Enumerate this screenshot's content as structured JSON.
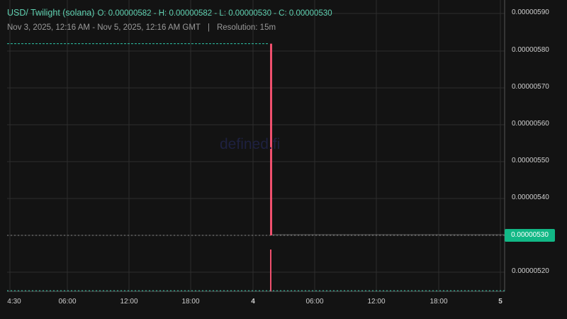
{
  "header": {
    "pair": "USD/ Twilight (solana)",
    "ohlc": "O: 0.00000582 - H: 0.00000582 - L: 0.00000530 - C: 0.00000530",
    "range": "Nov 3, 2025, 12:16 AM - Nov 5, 2025, 12:16 AM GMT",
    "separator": "|",
    "resolution": "Resolution: 15m"
  },
  "watermark": "defined.fi",
  "y_axis": {
    "labels": [
      "0.00000590",
      "0.00000580",
      "0.00000570",
      "0.00000560",
      "0.00000550",
      "0.00000540",
      "0.00000530",
      "0.00000520"
    ],
    "last_price": "0.00000530"
  },
  "x_axis": {
    "labels": [
      {
        "t": "4:30",
        "bold": false
      },
      {
        "t": "06:00",
        "bold": false
      },
      {
        "t": "12:00",
        "bold": false
      },
      {
        "t": "18:00",
        "bold": false
      },
      {
        "t": "4",
        "bold": true
      },
      {
        "t": "06:00",
        "bold": false
      },
      {
        "t": "12:00",
        "bold": false
      },
      {
        "t": "18:00",
        "bold": false
      },
      {
        "t": "5",
        "bold": true
      }
    ]
  },
  "candle": {
    "open": 5.82e-06,
    "high": 5.82e-06,
    "low": 5.3e-06,
    "close": 5.3e-06
  },
  "colors": {
    "down": "#f0506e",
    "up": "#12b886",
    "line": "#2ec4a6",
    "grid": "#2e2e2e",
    "background": "#131313"
  }
}
